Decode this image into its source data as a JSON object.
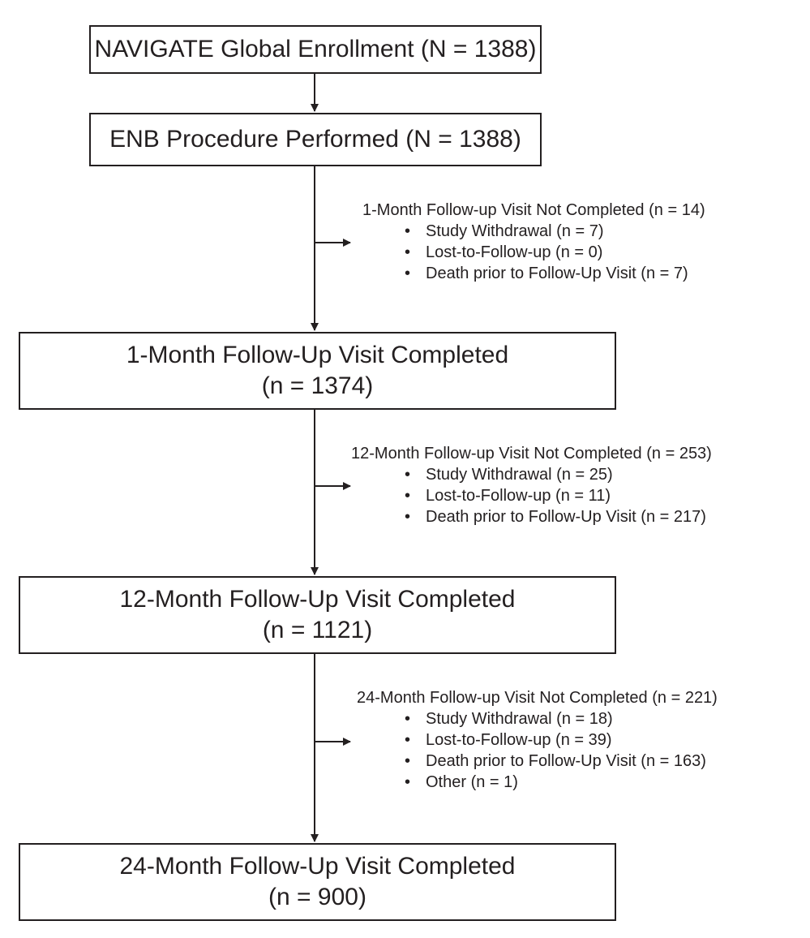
{
  "boxes": [
    {
      "line1": "NAVIGATE Global Enrollment (N = 1388)",
      "line2": ""
    },
    {
      "line1": "ENB Procedure Performed (N = 1388)",
      "line2": ""
    },
    {
      "line1": "1-Month Follow-Up Visit Completed",
      "line2": "(n = 1374)"
    },
    {
      "line1": "12-Month Follow-Up Visit Completed",
      "line2": "(n = 1121)"
    },
    {
      "line1": "24-Month Follow-Up Visit Completed",
      "line2": "(n = 900)"
    }
  ],
  "exclusions": [
    {
      "title": "1-Month Follow-up Visit Not Completed (n = 14)",
      "items": [
        "Study Withdrawal (n = 7)",
        "Lost-to-Follow-up (n = 0)",
        "Death prior to Follow-Up Visit (n = 7)"
      ]
    },
    {
      "title": "12-Month Follow-up Visit Not Completed (n = 253)",
      "items": [
        "Study Withdrawal (n = 25)",
        "Lost-to-Follow-up (n = 11)",
        "Death prior to Follow-Up Visit (n = 217)"
      ]
    },
    {
      "title": "24-Month Follow-up Visit Not Completed (n = 221)",
      "items": [
        "Study Withdrawal (n = 18)",
        "Lost-to-Follow-up (n = 39)",
        "Death prior to Follow-Up Visit (n = 163)",
        "Other (n = 1)"
      ]
    }
  ]
}
